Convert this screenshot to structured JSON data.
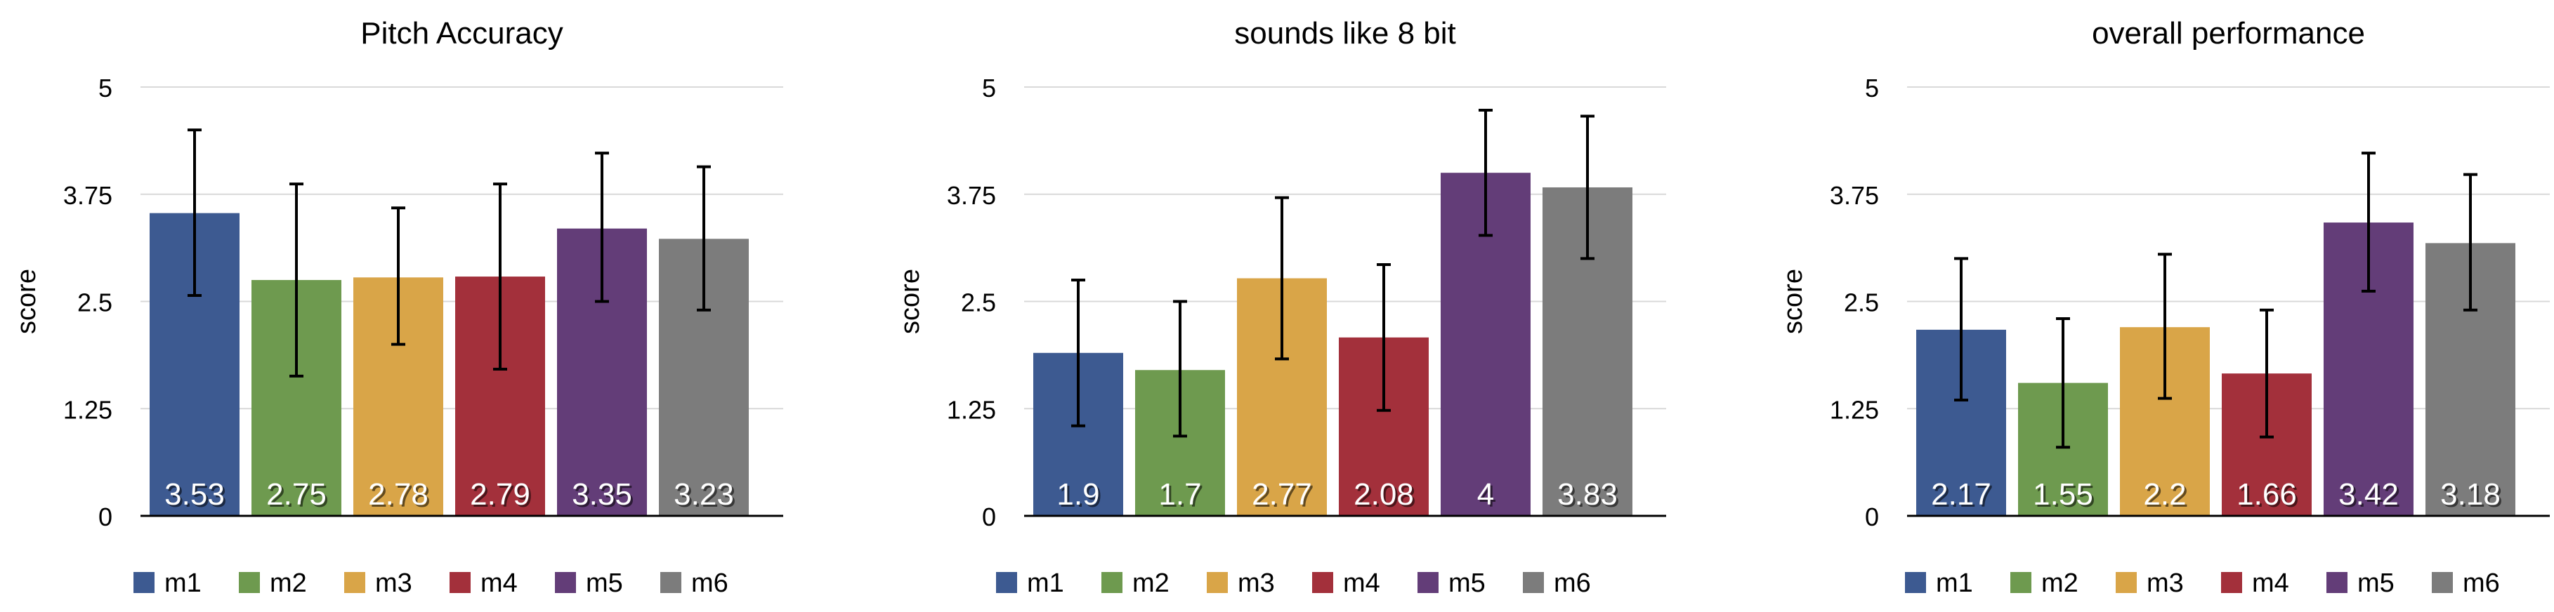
{
  "chart_data": [
    {
      "type": "bar",
      "title": "Pitch Accuracy",
      "ylabel": "score",
      "xlabel": "",
      "ylim": [
        0,
        5
      ],
      "yticks": [
        "0",
        "1.25",
        "2.5",
        "3.75",
        "5"
      ],
      "ytick_values": [
        0,
        1.25,
        2.5,
        3.75,
        5
      ],
      "grid": true,
      "legend": "bottom",
      "categories": [
        "m1",
        "m2",
        "m3",
        "m4",
        "m5",
        "m6"
      ],
      "values": [
        3.53,
        2.75,
        2.78,
        2.79,
        3.35,
        3.23
      ],
      "value_labels": [
        "3.53",
        "2.75",
        "2.78",
        "2.79",
        "3.35",
        "3.23"
      ],
      "error_low": [
        2.57,
        1.63,
        2.0,
        1.71,
        2.5,
        2.4
      ],
      "error_high": [
        4.5,
        3.87,
        3.59,
        3.87,
        4.23,
        4.07
      ]
    },
    {
      "type": "bar",
      "title": "sounds like 8 bit",
      "ylabel": "score",
      "xlabel": "",
      "ylim": [
        0,
        5
      ],
      "yticks": [
        "0",
        "1.25",
        "2.5",
        "3.75",
        "5"
      ],
      "ytick_values": [
        0,
        1.25,
        2.5,
        3.75,
        5
      ],
      "grid": true,
      "legend": "bottom",
      "categories": [
        "m1",
        "m2",
        "m3",
        "m4",
        "m5",
        "m6"
      ],
      "values": [
        1.9,
        1.7,
        2.77,
        2.08,
        4,
        3.83
      ],
      "value_labels": [
        "1.9",
        "1.7",
        "2.77",
        "2.08",
        "4",
        "3.83"
      ],
      "error_low": [
        1.05,
        0.93,
        1.83,
        1.23,
        3.27,
        3.0
      ],
      "error_high": [
        2.75,
        2.5,
        3.71,
        2.93,
        4.73,
        4.66
      ]
    },
    {
      "type": "bar",
      "title": "overall performance",
      "ylabel": "score",
      "xlabel": "",
      "ylim": [
        0,
        5
      ],
      "yticks": [
        "0",
        "1.25",
        "2.5",
        "3.75",
        "5"
      ],
      "ytick_values": [
        0,
        1.25,
        2.5,
        3.75,
        5
      ],
      "grid": true,
      "legend": "bottom",
      "categories": [
        "m1",
        "m2",
        "m3",
        "m4",
        "m5",
        "m6"
      ],
      "values": [
        2.17,
        1.55,
        2.2,
        1.66,
        3.42,
        3.18
      ],
      "value_labels": [
        "2.17",
        "1.55",
        "2.2",
        "1.66",
        "3.42",
        "3.18"
      ],
      "error_low": [
        1.35,
        0.8,
        1.37,
        0.92,
        2.62,
        2.4
      ],
      "error_high": [
        3.0,
        2.3,
        3.05,
        2.4,
        4.23,
        3.98
      ]
    }
  ],
  "series_colors": [
    "#3d5a91",
    "#6e9a4f",
    "#d9a548",
    "#a3303b",
    "#633d78",
    "#7c7c7c"
  ],
  "grid_color": "#d9d9d9",
  "axis_color": "#000000"
}
